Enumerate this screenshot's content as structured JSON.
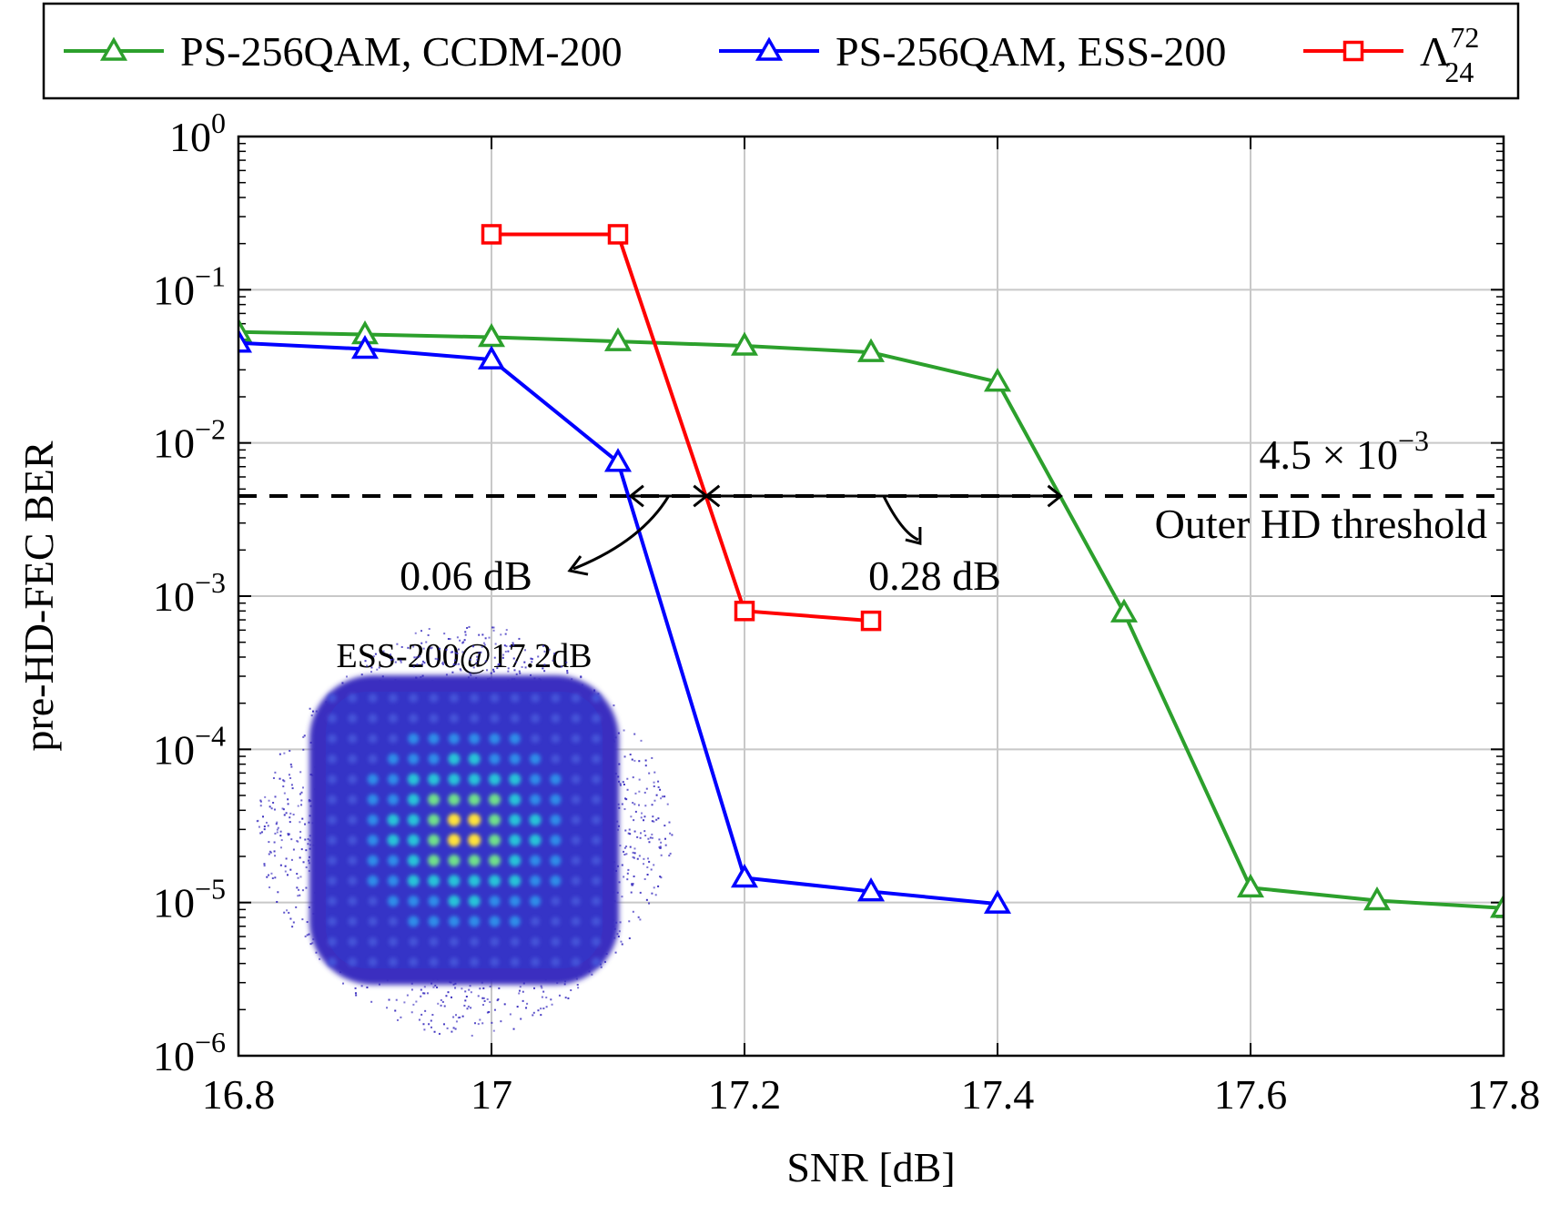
{
  "chart_data": {
    "type": "line",
    "xlabel": "SNR [dB]",
    "ylabel": "pre-HD-FEC BER",
    "xlim": [
      16.8,
      17.8
    ],
    "ylim": [
      1e-06,
      1
    ],
    "yscale": "log",
    "grid": true,
    "legend_position": "top",
    "x_ticks": [
      {
        "value": 16.8,
        "label": "16.8"
      },
      {
        "value": 17.0,
        "label": "17"
      },
      {
        "value": 17.2,
        "label": "17.2"
      },
      {
        "value": 17.4,
        "label": "17.4"
      },
      {
        "value": 17.6,
        "label": "17.6"
      },
      {
        "value": 17.8,
        "label": "17.8"
      }
    ],
    "y_ticks": [
      {
        "value": 1,
        "base": "10",
        "exp": "0"
      },
      {
        "value": 0.1,
        "base": "10",
        "exp": "−1"
      },
      {
        "value": 0.01,
        "base": "10",
        "exp": "−2"
      },
      {
        "value": 0.001,
        "base": "10",
        "exp": "−3"
      },
      {
        "value": 0.0001,
        "base": "10",
        "exp": "−4"
      },
      {
        "value": 1e-05,
        "base": "10",
        "exp": "−5"
      },
      {
        "value": 1e-06,
        "base": "10",
        "exp": "−6"
      }
    ],
    "series": [
      {
        "name": "PS-256QAM, CCDM-200",
        "color": "#2ca02c",
        "marker": "triangle",
        "x": [
          16.8,
          16.9,
          17.0,
          17.1,
          17.2,
          17.3,
          17.4,
          17.5,
          17.6,
          17.7,
          17.8
        ],
        "y": [
          0.053,
          0.051,
          0.049,
          0.046,
          0.043,
          0.039,
          0.025,
          0.00078,
          1.25e-05,
          1.03e-05,
          9.2e-06
        ]
      },
      {
        "name": "PS-256QAM, ESS-200",
        "color": "#0000ff",
        "marker": "triangle",
        "x": [
          16.8,
          16.9,
          17.0,
          17.1,
          17.2,
          17.3,
          17.4
        ],
        "y": [
          0.045,
          0.041,
          0.035,
          0.0075,
          1.45e-05,
          1.18e-05,
          9.8e-06
        ]
      },
      {
        "name": "Λ",
        "name_sub": "24",
        "name_sup": "72",
        "color": "#ff0000",
        "marker": "square",
        "x": [
          17.0,
          17.1,
          17.2,
          17.3
        ],
        "y": [
          0.23,
          0.23,
          0.0008,
          0.00069
        ]
      }
    ],
    "threshold": {
      "value": 0.0045,
      "label_main": "4.5 × 10",
      "label_exp": "−3",
      "label_desc": "Outer HD threshold"
    },
    "annotations": [
      {
        "text": "0.06 dB",
        "from_x": 17.11,
        "to_x": 17.17
      },
      {
        "text": "0.28 dB",
        "from_x": 17.17,
        "to_x": 17.45
      }
    ],
    "inset": {
      "title": "ESS-200@17.2dB"
    }
  }
}
